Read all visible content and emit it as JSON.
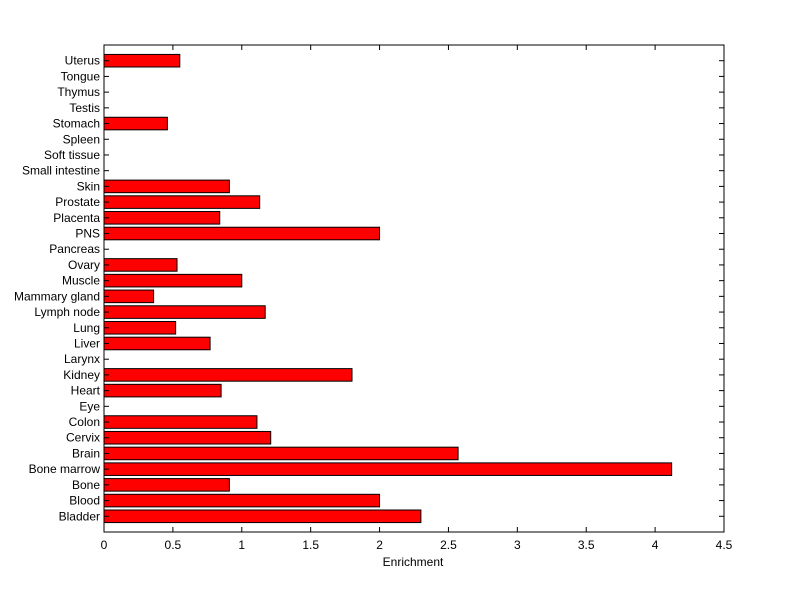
{
  "chart_data": {
    "type": "bar",
    "orientation": "horizontal",
    "xlabel": "Enrichment",
    "xlim": [
      0,
      4.5
    ],
    "xticks": [
      "0",
      "0.5",
      "1",
      "1.5",
      "2",
      "2.5",
      "3",
      "3.5",
      "4",
      "4.5"
    ],
    "grid": false,
    "bar_color": "#ff0000",
    "categories": [
      "Bladder",
      "Blood",
      "Bone",
      "Bone marrow",
      "Brain",
      "Cervix",
      "Colon",
      "Eye",
      "Heart",
      "Kidney",
      "Larynx",
      "Liver",
      "Lung",
      "Lymph node",
      "Mammary gland",
      "Muscle",
      "Ovary",
      "Pancreas",
      "PNS",
      "Placenta",
      "Prostate",
      "Skin",
      "Small intestine",
      "Soft tissue",
      "Spleen",
      "Stomach",
      "Testis",
      "Thymus",
      "Tongue",
      "Uterus"
    ],
    "values": [
      2.3,
      2.0,
      0.91,
      4.12,
      2.57,
      1.21,
      1.11,
      0,
      0.85,
      1.8,
      0,
      0.77,
      0.52,
      1.17,
      0.36,
      1.0,
      0.53,
      0,
      2.0,
      0.84,
      1.13,
      0.91,
      0,
      0,
      0,
      0.46,
      0,
      0,
      0,
      0.55
    ]
  }
}
